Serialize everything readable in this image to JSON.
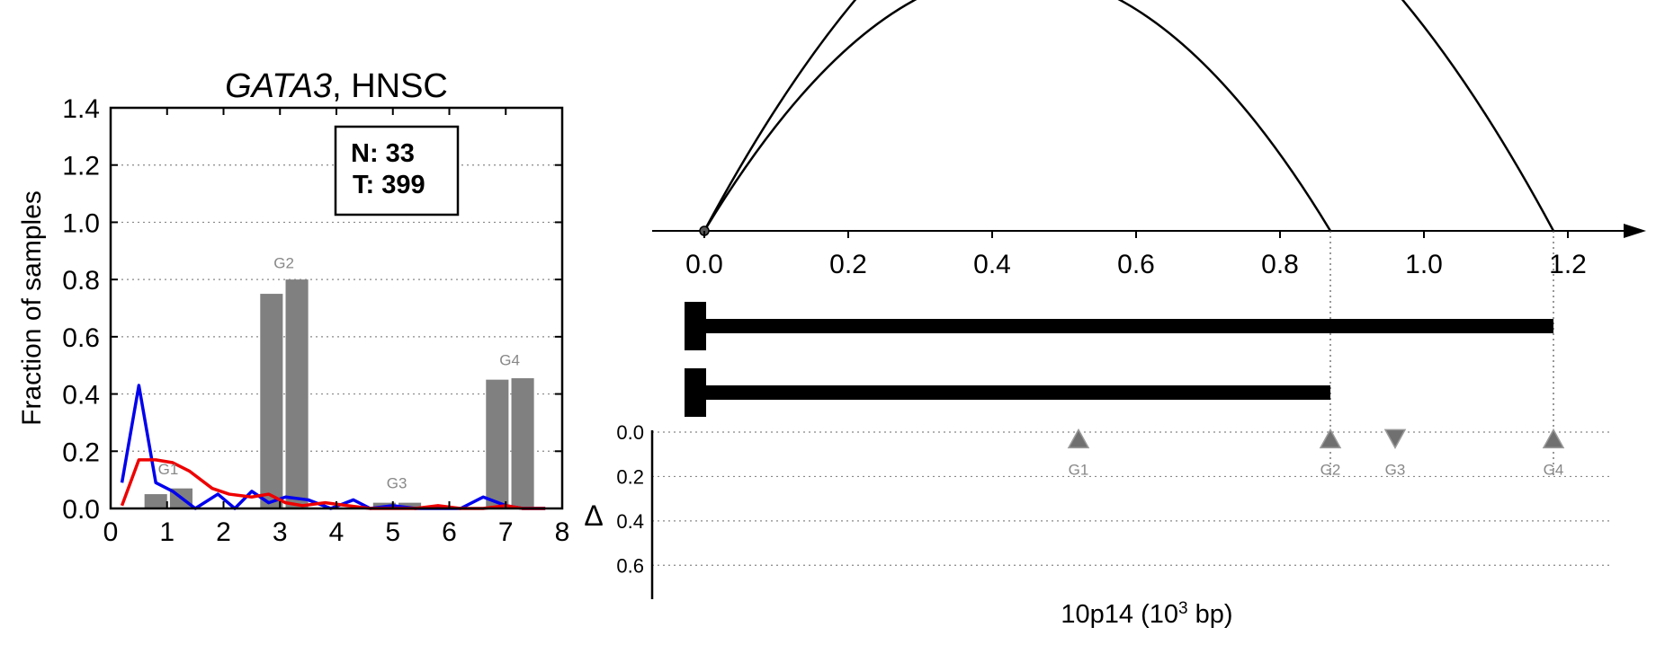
{
  "chart_data": [
    {
      "type": "bar",
      "title_gene": "GATA3",
      "title_rest": ", HNSC",
      "xlabel": "",
      "ylabel": "Fraction of samples",
      "xlim": [
        0,
        8
      ],
      "ylim": [
        0,
        1.4
      ],
      "xticks": [
        0,
        1,
        2,
        3,
        4,
        5,
        6,
        7,
        8
      ],
      "yticks": [
        "0.0",
        "0.2",
        "0.4",
        "0.6",
        "0.8",
        "1.0",
        "1.2",
        "1.4"
      ],
      "grid": "horizontal-dotted",
      "legend_box": {
        "line1": "N: 33",
        "line2": "T: 399"
      },
      "bars": [
        {
          "x": 0.8,
          "value": 0.05
        },
        {
          "x": 1.25,
          "value": 0.07
        },
        {
          "x": 2.85,
          "value": 0.75
        },
        {
          "x": 3.3,
          "value": 0.8
        },
        {
          "x": 4.85,
          "value": 0.02
        },
        {
          "x": 5.3,
          "value": 0.02
        },
        {
          "x": 6.85,
          "value": 0.45
        },
        {
          "x": 7.3,
          "value": 0.455
        }
      ],
      "bar_width": 0.4,
      "group_labels": [
        {
          "label": "G1",
          "x": 1.02,
          "y": 0.12
        },
        {
          "label": "G2",
          "x": 3.07,
          "y": 0.84
        },
        {
          "label": "G3",
          "x": 5.07,
          "y": 0.07
        },
        {
          "label": "G4",
          "x": 7.07,
          "y": 0.5
        }
      ],
      "series": [
        {
          "color": "#0000ee",
          "x": [
            0.2,
            0.5,
            0.8,
            1.1,
            1.5,
            1.9,
            2.2,
            2.5,
            2.8,
            3.1,
            3.5,
            3.9,
            4.3,
            4.6,
            5.0,
            5.4,
            5.8,
            6.2,
            6.6,
            7.0,
            7.3,
            7.7
          ],
          "y": [
            0.09,
            0.43,
            0.09,
            0.06,
            0.0,
            0.05,
            0.0,
            0.06,
            0.02,
            0.04,
            0.03,
            0.0,
            0.03,
            0.0,
            0.01,
            0.0,
            0.0,
            0.0,
            0.04,
            0.01,
            0.0,
            0.0
          ]
        },
        {
          "color": "#ee0000",
          "x": [
            0.2,
            0.5,
            0.8,
            1.1,
            1.4,
            1.8,
            2.1,
            2.5,
            2.8,
            3.1,
            3.4,
            3.8,
            4.2,
            4.6,
            5.0,
            5.4,
            5.8,
            6.2,
            6.6,
            7.0,
            7.3,
            7.7
          ],
          "y": [
            0.01,
            0.17,
            0.17,
            0.16,
            0.13,
            0.07,
            0.05,
            0.04,
            0.05,
            0.02,
            0.01,
            0.02,
            0.01,
            0.0,
            0.0,
            0.0,
            0.01,
            0.0,
            0.0,
            0.01,
            0.0,
            0.0
          ]
        }
      ]
    },
    {
      "type": "scatter",
      "xlabel_main": "10p14 (10",
      "xlabel_sup": "3",
      "xlabel_tail": " bp)",
      "xlim": [
        0,
        1.25
      ],
      "xticks": [
        "0.0",
        "0.2",
        "0.4",
        "0.6",
        "0.8",
        "1.0",
        "1.2"
      ],
      "arcs": [
        {
          "start": 0.0,
          "end": 1.18,
          "height": 0.55
        },
        {
          "start": 0.0,
          "end": 0.87,
          "height": 0.36
        }
      ],
      "isoforms": [
        {
          "start": 0.0,
          "end": 1.18
        },
        {
          "start": 0.0,
          "end": 0.87
        }
      ],
      "delta_panel": {
        "ylabel": "Δ",
        "ylim": [
          0,
          0.7
        ],
        "yticks": [
          "0.0",
          "0.2",
          "0.4",
          "0.6"
        ],
        "markers": [
          {
            "label": "G1",
            "x": 0.52,
            "delta": 0.03,
            "direction": "up"
          },
          {
            "label": "G2",
            "x": 0.87,
            "delta": 0.03,
            "direction": "up"
          },
          {
            "label": "G3",
            "x": 0.96,
            "delta": 0.03,
            "direction": "down"
          },
          {
            "label": "G4",
            "x": 1.18,
            "delta": 0.03,
            "direction": "up"
          }
        ]
      }
    }
  ]
}
